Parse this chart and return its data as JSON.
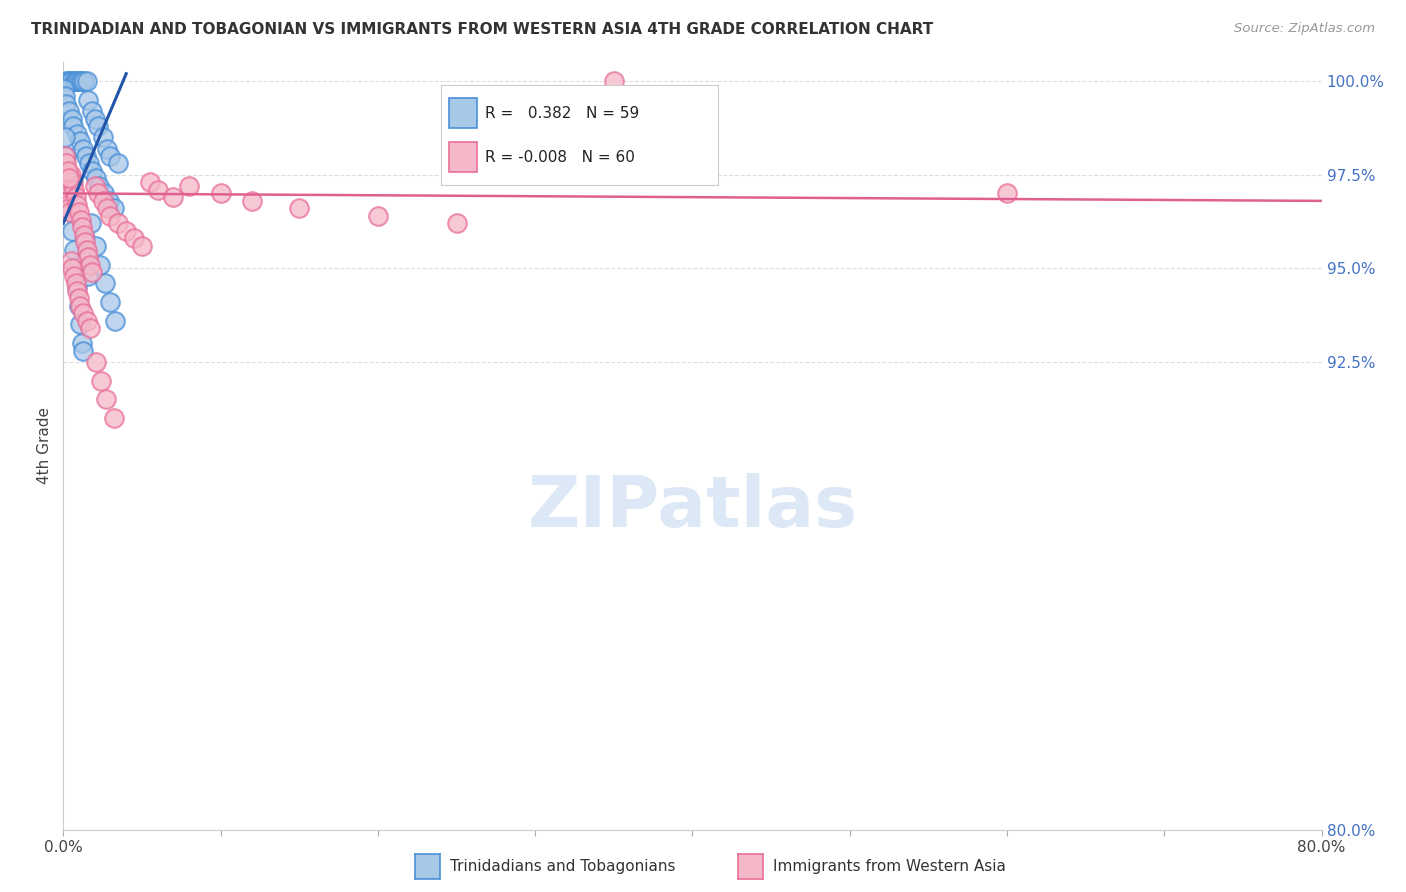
{
  "title": "TRINIDADIAN AND TOBAGONIAN VS IMMIGRANTS FROM WESTERN ASIA 4TH GRADE CORRELATION CHART",
  "source": "Source: ZipAtlas.com",
  "ylabel": "4th Grade",
  "yticks": [
    80.0,
    92.5,
    95.0,
    97.5,
    100.0
  ],
  "xmin": 0.0,
  "xmax": 80.0,
  "ymin": 80.0,
  "ymax": 100.5,
  "blue_R": 0.382,
  "blue_N": 59,
  "pink_R": -0.008,
  "pink_N": 60,
  "legend_label_blue": "Trinidadians and Tobagonians",
  "legend_label_pink": "Immigrants from Western Asia",
  "blue_color": "#A8C8E8",
  "pink_color": "#F5B8C8",
  "blue_edge_color": "#4A90D9",
  "pink_edge_color": "#E8709A",
  "blue_line_color": "#2255AA",
  "pink_line_color": "#E06090",
  "watermark_color": "#DCE8F5",
  "title_color": "#333333",
  "source_color": "#999999",
  "ytick_color": "#4472C4",
  "grid_color": "#DDDDDD",
  "blue_x": [
    0.15,
    0.3,
    0.45,
    0.5,
    0.7,
    0.8,
    0.9,
    1.0,
    1.1,
    1.2,
    1.3,
    1.5,
    1.6,
    1.8,
    2.0,
    2.2,
    2.5,
    2.8,
    3.0,
    3.5,
    0.05,
    0.1,
    0.2,
    0.35,
    0.55,
    0.65,
    0.85,
    1.05,
    1.25,
    1.45,
    1.65,
    1.85,
    2.1,
    2.3,
    2.6,
    2.9,
    3.2,
    0.08,
    0.18,
    0.28,
    0.38,
    0.48,
    0.58,
    0.68,
    0.78,
    0.88,
    0.98,
    1.08,
    1.18,
    1.28,
    1.38,
    1.48,
    1.58,
    1.78,
    2.05,
    2.35,
    2.65,
    2.95,
    3.3
  ],
  "blue_y": [
    100.0,
    100.0,
    100.0,
    100.0,
    100.0,
    100.0,
    100.0,
    100.0,
    100.0,
    100.0,
    100.0,
    100.0,
    99.5,
    99.2,
    99.0,
    98.8,
    98.5,
    98.2,
    98.0,
    97.8,
    99.8,
    99.6,
    99.4,
    99.2,
    99.0,
    98.8,
    98.6,
    98.4,
    98.2,
    98.0,
    97.8,
    97.6,
    97.4,
    97.2,
    97.0,
    96.8,
    96.6,
    98.5,
    98.0,
    97.5,
    97.0,
    96.5,
    96.0,
    95.5,
    95.0,
    94.5,
    94.0,
    93.5,
    93.0,
    92.8,
    95.8,
    95.3,
    94.8,
    96.2,
    95.6,
    95.1,
    94.6,
    94.1,
    93.6
  ],
  "pink_x": [
    0.05,
    0.1,
    0.15,
    0.2,
    0.25,
    0.3,
    0.35,
    0.4,
    0.5,
    0.6,
    0.7,
    0.8,
    0.9,
    1.0,
    1.1,
    1.2,
    1.3,
    1.4,
    1.5,
    1.6,
    1.7,
    1.8,
    2.0,
    2.2,
    2.5,
    2.8,
    3.0,
    3.5,
    4.0,
    4.5,
    5.0,
    5.5,
    6.0,
    7.0,
    8.0,
    10.0,
    12.0,
    15.0,
    20.0,
    25.0,
    0.08,
    0.18,
    0.28,
    0.38,
    0.48,
    0.58,
    0.68,
    0.78,
    0.88,
    0.98,
    1.08,
    1.28,
    1.48,
    1.68,
    2.1,
    2.4,
    2.7,
    3.2,
    60.0,
    35.0
  ],
  "pink_y": [
    97.2,
    97.1,
    97.0,
    96.9,
    96.8,
    96.7,
    96.6,
    96.5,
    97.5,
    97.3,
    97.1,
    96.9,
    96.7,
    96.5,
    96.3,
    96.1,
    95.9,
    95.7,
    95.5,
    95.3,
    95.1,
    94.9,
    97.2,
    97.0,
    96.8,
    96.6,
    96.4,
    96.2,
    96.0,
    95.8,
    95.6,
    97.3,
    97.1,
    96.9,
    97.2,
    97.0,
    96.8,
    96.6,
    96.4,
    96.2,
    98.0,
    97.8,
    97.6,
    97.4,
    95.2,
    95.0,
    94.8,
    94.6,
    94.4,
    94.2,
    94.0,
    93.8,
    93.6,
    93.4,
    92.5,
    92.0,
    91.5,
    91.0,
    97.0,
    100.0
  ],
  "blue_line_x0": 0.0,
  "blue_line_x1": 4.0,
  "blue_line_y0": 96.2,
  "blue_line_y1": 100.2,
  "pink_line_x0": 0.0,
  "pink_line_x1": 80.0,
  "pink_line_y0": 97.0,
  "pink_line_y1": 96.8
}
